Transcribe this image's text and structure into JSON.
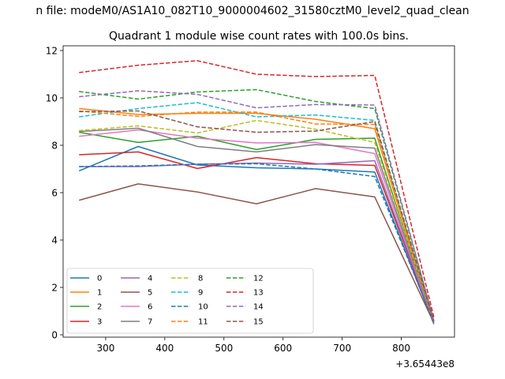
{
  "chart_data": {
    "type": "line",
    "suptitle": "n file: modeM0/AS1A10_082T10_9000004602_31580cztM0_level2_quad_clean",
    "title": "Quadrant 1 module wise count rates with 100.0s bins.",
    "xlabel": "",
    "ylabel": "",
    "x_offset_label": "+3.65443e8",
    "xlim": [
      228,
      890
    ],
    "ylim": [
      -0.1,
      12.2
    ],
    "xticks": [
      300,
      400,
      500,
      600,
      700,
      800
    ],
    "yticks": [
      0,
      2,
      4,
      6,
      8,
      10,
      12
    ],
    "legend_position": "lower-left",
    "x": [
      255,
      355,
      455,
      555,
      655,
      755,
      855
    ],
    "series": [
      {
        "name": "0",
        "color": "#1f77b4",
        "dash": "solid",
        "values": [
          6.92,
          7.95,
          7.17,
          7.05,
          7.0,
          6.87,
          0.45
        ]
      },
      {
        "name": "1",
        "color": "#ff7f0e",
        "dash": "solid",
        "values": [
          9.55,
          9.3,
          9.35,
          9.35,
          9.1,
          8.7,
          0.5
        ]
      },
      {
        "name": "2",
        "color": "#2ca02c",
        "dash": "solid",
        "values": [
          8.55,
          8.12,
          8.38,
          7.82,
          8.25,
          8.3,
          0.5
        ]
      },
      {
        "name": "3",
        "color": "#d62728",
        "dash": "solid",
        "values": [
          7.6,
          7.72,
          7.02,
          7.48,
          7.22,
          7.15,
          0.5
        ]
      },
      {
        "name": "4",
        "color": "#9467bd",
        "dash": "solid",
        "values": [
          7.1,
          7.1,
          7.2,
          7.25,
          7.2,
          7.35,
          0.5
        ]
      },
      {
        "name": "5",
        "color": "#8c564b",
        "dash": "solid",
        "values": [
          5.68,
          6.37,
          6.03,
          5.53,
          6.17,
          5.82,
          0.5
        ]
      },
      {
        "name": "6",
        "color": "#e377c2",
        "dash": "solid",
        "values": [
          8.38,
          8.65,
          8.3,
          8.1,
          8.12,
          7.65,
          0.5
        ]
      },
      {
        "name": "7",
        "color": "#7f7f7f",
        "dash": "solid",
        "values": [
          8.58,
          8.72,
          7.95,
          7.72,
          8.03,
          7.88,
          0.55
        ]
      },
      {
        "name": "8",
        "color": "#bcbd22",
        "dash": "dashed",
        "values": [
          8.62,
          8.82,
          8.52,
          9.05,
          8.68,
          8.12,
          0.6
        ]
      },
      {
        "name": "9",
        "color": "#17becf",
        "dash": "dashed",
        "values": [
          9.2,
          9.55,
          9.8,
          9.2,
          9.28,
          9.05,
          0.55
        ]
      },
      {
        "name": "10",
        "color": "#1f77b4",
        "dash": "dashed",
        "values": [
          7.1,
          7.13,
          7.2,
          7.22,
          7.0,
          6.68,
          0.5
        ]
      },
      {
        "name": "11",
        "color": "#ff7f0e",
        "dash": "dashed",
        "values": [
          9.45,
          9.22,
          9.4,
          9.4,
          8.9,
          8.88,
          0.55
        ]
      },
      {
        "name": "12",
        "color": "#2ca02c",
        "dash": "dashed",
        "values": [
          10.27,
          9.95,
          10.25,
          10.35,
          9.85,
          9.55,
          0.6
        ]
      },
      {
        "name": "13",
        "color": "#d62728",
        "dash": "dashed",
        "values": [
          11.07,
          11.38,
          11.57,
          11.0,
          10.9,
          10.95,
          0.75
        ]
      },
      {
        "name": "14",
        "color": "#9467bd",
        "dash": "dashed",
        "values": [
          10.05,
          10.3,
          10.15,
          9.58,
          9.72,
          9.7,
          0.6
        ]
      },
      {
        "name": "15",
        "color": "#8c564b",
        "dash": "dashed",
        "values": [
          9.42,
          9.45,
          8.78,
          8.55,
          8.6,
          9.0,
          0.55
        ]
      }
    ]
  }
}
